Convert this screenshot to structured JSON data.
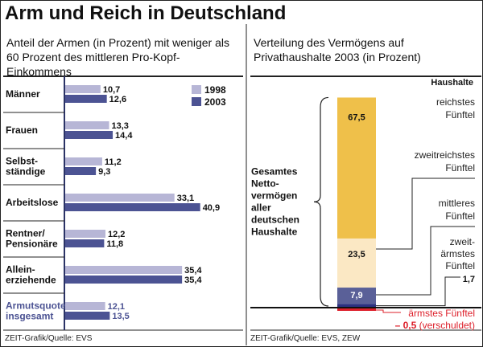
{
  "title": "Arm und Reich in Deutschland",
  "left_panel": {
    "subtitle": "Anteil der Armen (in Prozent) mit weniger als 60 Prozent des mittleren Pro-Kopf-Einkommens",
    "source": "ZEIT-Grafik/Quelle: EVS"
  },
  "right_panel": {
    "subtitle": "Verteilung des Vermögens auf Privathaushalte 2003 (in Prozent)",
    "source": "ZEIT-Grafik/Quelle: EVS, ZEW"
  },
  "colors": {
    "light_bar": "#b7b6d6",
    "dark_bar": "#4c5393",
    "axis": "#2b3366",
    "total_label": "#4c5393",
    "richest": "#efc04a",
    "second": "#fbe8c4",
    "third": "#5a6098",
    "poorest_blue": "#2b3180",
    "negative": "#dd1f2a"
  },
  "chart_data": [
    {
      "type": "bar",
      "orientation": "horizontal",
      "categories": [
        [
          "Männer"
        ],
        [
          "Frauen"
        ],
        [
          "Selbst-",
          "ständige"
        ],
        [
          "Arbeitslose"
        ],
        [
          "Rentner/",
          "Pensionäre"
        ],
        [
          "Allein-",
          "erziehende"
        ],
        [
          "Armutsquote",
          "insgesamt"
        ]
      ],
      "series": [
        {
          "name": "1998",
          "values": [
            10.7,
            13.3,
            11.2,
            33.1,
            12.2,
            35.4,
            12.1
          ],
          "labels": [
            "10,7",
            "13,3",
            "11,2",
            "33,1",
            "12,2",
            "35,4",
            "12,1"
          ]
        },
        {
          "name": "2003",
          "values": [
            12.6,
            14.4,
            9.3,
            40.9,
            11.8,
            35.4,
            13.5
          ],
          "labels": [
            "12,6",
            "14,4",
            "9,3",
            "40,9",
            "11,8",
            "35,4",
            "13,5"
          ]
        }
      ],
      "legend": [
        "1998",
        "2003"
      ],
      "legend_position": "top-right",
      "xlim": [
        0,
        42
      ],
      "grid": false
    },
    {
      "type": "bar",
      "stacked": true,
      "header": "Haushalte",
      "bracket_label": [
        "Gesamtes",
        "Netto-",
        "vermögen",
        "aller",
        "deutschen",
        "Haushalte"
      ],
      "segments": [
        {
          "name_lines": [
            "reichstes",
            "Fünftel"
          ],
          "value": 67.5,
          "label": "67,5"
        },
        {
          "name_lines": [
            "zweitreichstes",
            "Fünftel"
          ],
          "value": 23.5,
          "label": "23,5"
        },
        {
          "name_lines": [
            "mittleres",
            "Fünftel"
          ],
          "value": 7.9,
          "label": "7,9"
        },
        {
          "name_lines": [
            "zweit-",
            "ärmstes",
            "Fünftel"
          ],
          "value": 1.7,
          "label": "1,7"
        },
        {
          "name_lines": [
            "ärmstes Fünftel"
          ],
          "value": -0.5,
          "label": "– 0,5",
          "note": "(verschuldet)"
        }
      ],
      "ylim": [
        -0.5,
        100
      ],
      "grid": false
    }
  ]
}
